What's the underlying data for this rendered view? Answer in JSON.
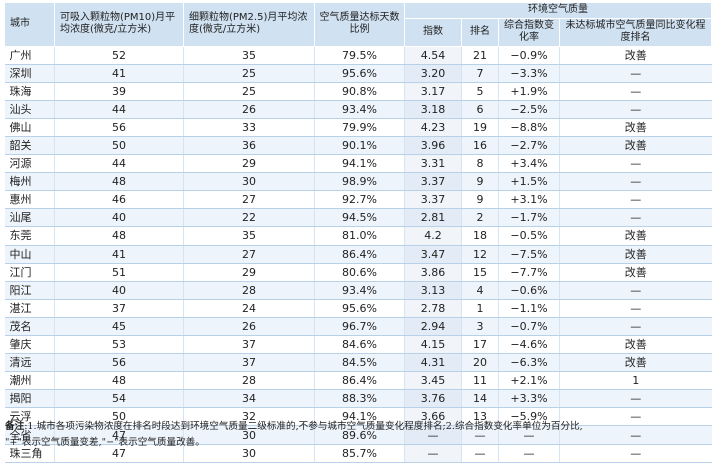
{
  "headers": {
    "city": "城市",
    "pm10": "可吸入颗粒物(PM10)月平均浓度(微克/立方米)",
    "pm25": "细颗粒物(PM2.5)月平均浓度(微克/立方米)",
    "ratio": "空气质量达标天数比例",
    "env_group": "环境空气质量",
    "index": "指数",
    "rank": "排名",
    "change": "综合指数变化率",
    "improve_rank": "未达标城市空气质量同比变化程度排名"
  },
  "rows": [
    {
      "city": "广州",
      "pm10": "52",
      "pm25": "35",
      "ratio": "79.5%",
      "index": "4.54",
      "rank": "21",
      "change": "−0.9%",
      "improve": "改善"
    },
    {
      "city": "深圳",
      "pm10": "41",
      "pm25": "25",
      "ratio": "95.6%",
      "index": "3.20",
      "rank": "7",
      "change": "−3.3%",
      "improve": "—"
    },
    {
      "city": "珠海",
      "pm10": "39",
      "pm25": "25",
      "ratio": "90.8%",
      "index": "3.17",
      "rank": "5",
      "change": "+1.9%",
      "improve": "—"
    },
    {
      "city": "汕头",
      "pm10": "44",
      "pm25": "26",
      "ratio": "93.4%",
      "index": "3.18",
      "rank": "6",
      "change": "−2.5%",
      "improve": "—"
    },
    {
      "city": "佛山",
      "pm10": "56",
      "pm25": "33",
      "ratio": "79.9%",
      "index": "4.23",
      "rank": "19",
      "change": "−8.8%",
      "improve": "改善"
    },
    {
      "city": "韶关",
      "pm10": "50",
      "pm25": "36",
      "ratio": "90.1%",
      "index": "3.96",
      "rank": "16",
      "change": "−2.7%",
      "improve": "改善"
    },
    {
      "city": "河源",
      "pm10": "44",
      "pm25": "29",
      "ratio": "94.1%",
      "index": "3.31",
      "rank": "8",
      "change": "+3.4%",
      "improve": "—"
    },
    {
      "city": "梅州",
      "pm10": "48",
      "pm25": "30",
      "ratio": "98.9%",
      "index": "3.37",
      "rank": "9",
      "change": "+1.5%",
      "improve": "—"
    },
    {
      "city": "惠州",
      "pm10": "46",
      "pm25": "27",
      "ratio": "92.7%",
      "index": "3.37",
      "rank": "9",
      "change": "+3.1%",
      "improve": "—"
    },
    {
      "city": "汕尾",
      "pm10": "40",
      "pm25": "22",
      "ratio": "94.5%",
      "index": "2.81",
      "rank": "2",
      "change": "−1.7%",
      "improve": "—"
    },
    {
      "city": "东莞",
      "pm10": "48",
      "pm25": "35",
      "ratio": "81.0%",
      "index": "4.2",
      "rank": "18",
      "change": "−0.5%",
      "improve": "改善"
    },
    {
      "city": "中山",
      "pm10": "41",
      "pm25": "27",
      "ratio": "86.4%",
      "index": "3.47",
      "rank": "12",
      "change": "−7.5%",
      "improve": "改善"
    },
    {
      "city": "江门",
      "pm10": "51",
      "pm25": "29",
      "ratio": "80.6%",
      "index": "3.86",
      "rank": "15",
      "change": "−7.7%",
      "improve": "改善"
    },
    {
      "city": "阳江",
      "pm10": "40",
      "pm25": "28",
      "ratio": "93.4%",
      "index": "3.13",
      "rank": "4",
      "change": "−0.6%",
      "improve": "—"
    },
    {
      "city": "湛江",
      "pm10": "37",
      "pm25": "24",
      "ratio": "95.6%",
      "index": "2.78",
      "rank": "1",
      "change": "−1.1%",
      "improve": "—"
    },
    {
      "city": "茂名",
      "pm10": "45",
      "pm25": "26",
      "ratio": "96.7%",
      "index": "2.94",
      "rank": "3",
      "change": "−0.7%",
      "improve": "—"
    },
    {
      "city": "肇庆",
      "pm10": "53",
      "pm25": "37",
      "ratio": "84.6%",
      "index": "4.15",
      "rank": "17",
      "change": "−4.6%",
      "improve": "改善"
    },
    {
      "city": "清远",
      "pm10": "56",
      "pm25": "37",
      "ratio": "84.5%",
      "index": "4.31",
      "rank": "20",
      "change": "−6.3%",
      "improve": "改善"
    },
    {
      "city": "潮州",
      "pm10": "48",
      "pm25": "28",
      "ratio": "86.4%",
      "index": "3.45",
      "rank": "11",
      "change": "+2.1%",
      "improve": "1"
    },
    {
      "city": "揭阳",
      "pm10": "54",
      "pm25": "34",
      "ratio": "88.3%",
      "index": "3.76",
      "rank": "14",
      "change": "+3.3%",
      "improve": "—"
    },
    {
      "city": "云浮",
      "pm10": "50",
      "pm25": "32",
      "ratio": "94.1%",
      "index": "3.66",
      "rank": "13",
      "change": "−5.9%",
      "improve": "—"
    },
    {
      "city": "全省",
      "pm10": "47",
      "pm25": "30",
      "ratio": "89.6%",
      "index": "—",
      "rank": "—",
      "change": "—",
      "improve": "—"
    },
    {
      "city": "珠三角",
      "pm10": "47",
      "pm25": "30",
      "ratio": "85.7%",
      "index": "—",
      "rank": "—",
      "change": "—",
      "improve": "—"
    }
  ],
  "note": {
    "label": "备注",
    "line1": ":1.城市各项污染物浓度在排名时段达到环境空气质量二级标准的,不参与城市空气质量变化程度排名;2.综合指数变化率单位为百分比,",
    "line2": "\"+\"表示空气质量变差,\"−\"表示空气质量改善。"
  }
}
